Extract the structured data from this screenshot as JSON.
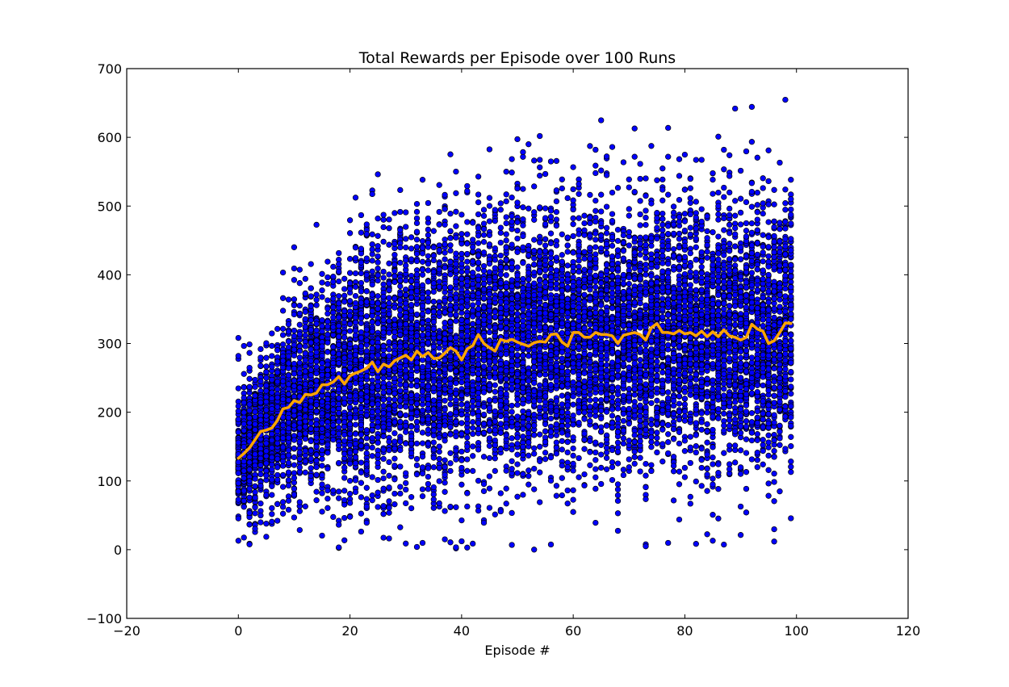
{
  "chart_data": {
    "type": "scatter",
    "title": "Total Rewards per Episode over 100 Runs",
    "xlabel": "Episode #",
    "ylabel": "",
    "xlim": [
      -20,
      120
    ],
    "ylim": [
      -100,
      700
    ],
    "xticks": [
      -20,
      0,
      20,
      40,
      60,
      80,
      100,
      120
    ],
    "yticks": [
      -100,
      0,
      100,
      200,
      300,
      400,
      500,
      600,
      700
    ],
    "xtick_labels": [
      "−20",
      "0",
      "20",
      "40",
      "60",
      "80",
      "100",
      "120"
    ],
    "ytick_labels": [
      "−100",
      "0",
      "100",
      "200",
      "300",
      "400",
      "500",
      "600",
      "700"
    ],
    "grid": false,
    "legend": "none",
    "runs_per_episode": 100,
    "series": [
      {
        "kind": "scatter",
        "color": "#0000ff",
        "edge_color": "#000000",
        "x_range": [
          0,
          99
        ],
        "points_per_x": 100,
        "note_hidden": ""
      },
      {
        "kind": "line",
        "color": "#ffa500",
        "x": [
          0,
          1,
          2,
          3,
          4,
          5,
          6,
          7,
          8,
          9,
          10,
          11,
          12,
          13,
          14,
          15,
          16,
          17,
          18,
          19,
          20,
          21,
          22,
          23,
          24,
          25,
          26,
          27,
          28,
          29,
          30,
          31,
          32,
          33,
          34,
          35,
          36,
          37,
          38,
          39,
          40,
          41,
          42,
          43,
          44,
          45,
          46,
          47,
          48,
          49,
          50,
          51,
          52,
          53,
          54,
          55,
          56,
          57,
          58,
          59,
          60,
          61,
          62,
          63,
          64,
          65,
          66,
          67,
          68,
          69,
          70,
          71,
          72,
          73,
          74,
          75,
          76,
          77,
          78,
          79,
          80,
          81,
          82,
          83,
          84,
          85,
          86,
          87,
          88,
          89,
          90,
          91,
          92,
          93,
          94,
          95,
          96,
          97,
          98,
          99
        ],
        "y": [
          133,
          140,
          148,
          160,
          172,
          174,
          177,
          188,
          205,
          207,
          217,
          214,
          226,
          225,
          228,
          240,
          240,
          244,
          252,
          241,
          253,
          257,
          260,
          264,
          273,
          259,
          270,
          266,
          275,
          279,
          283,
          276,
          289,
          281,
          287,
          278,
          279,
          286,
          294,
          289,
          276,
          292,
          297,
          313,
          300,
          294,
          289,
          306,
          303,
          306,
          302,
          299,
          296,
          301,
          303,
          302,
          313,
          314,
          302,
          296,
          316,
          316,
          309,
          309,
          316,
          313,
          313,
          311,
          300,
          312,
          314,
          316,
          313,
          305,
          323,
          329,
          316,
          316,
          314,
          319,
          314,
          316,
          311,
          318,
          310,
          317,
          310,
          320,
          311,
          309,
          305,
          309,
          328,
          321,
          318,
          300,
          304,
          316,
          330,
          329
        ]
      }
    ]
  }
}
